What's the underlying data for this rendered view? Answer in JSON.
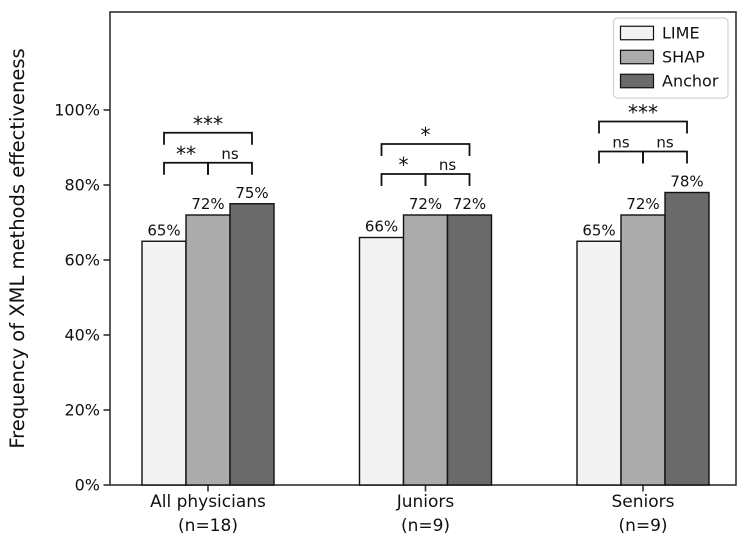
{
  "chart_data": {
    "type": "bar",
    "title": "",
    "xlabel": "",
    "ylabel": "Frequency of XML methods effectiveness",
    "ylim": [
      0,
      127
    ],
    "grid": false,
    "yticks": [
      {
        "value": 0,
        "label": "0%"
      },
      {
        "value": 20,
        "label": "20%"
      },
      {
        "value": 40,
        "label": "40%"
      },
      {
        "value": 60,
        "label": "60%"
      },
      {
        "value": 80,
        "label": "80%"
      },
      {
        "value": 100,
        "label": "100%"
      }
    ],
    "categories": [
      {
        "line1": "All physicians",
        "line2": "(n=18)"
      },
      {
        "line1": "Juniors",
        "line2": "(n=9)"
      },
      {
        "line1": "Seniors",
        "line2": "(n=9)"
      }
    ],
    "series": [
      {
        "name": "LIME",
        "color": "#f3f3f3",
        "values": [
          65,
          66,
          65
        ]
      },
      {
        "name": "SHAP",
        "color": "#ababab",
        "values": [
          72,
          72,
          72
        ]
      },
      {
        "name": "Anchor",
        "color": "#6a6a6a",
        "values": [
          75,
          72,
          78
        ]
      }
    ],
    "value_labels": [
      [
        "65%",
        "72%",
        "75%"
      ],
      [
        "66%",
        "72%",
        "72%"
      ],
      [
        "65%",
        "72%",
        "78%"
      ]
    ],
    "annotations": [
      {
        "group": 0,
        "comparisons": [
          {
            "from": "LIME",
            "to": "SHAP",
            "label": "**"
          },
          {
            "from": "SHAP",
            "to": "Anchor",
            "label": "ns"
          }
        ],
        "overall": {
          "from": "LIME",
          "to": "Anchor",
          "label": "***"
        }
      },
      {
        "group": 1,
        "comparisons": [
          {
            "from": "LIME",
            "to": "SHAP",
            "label": "*"
          },
          {
            "from": "SHAP",
            "to": "Anchor",
            "label": "ns"
          }
        ],
        "overall": {
          "from": "LIME",
          "to": "Anchor",
          "label": "*"
        }
      },
      {
        "group": 2,
        "comparisons": [
          {
            "from": "LIME",
            "to": "SHAP",
            "label": "ns"
          },
          {
            "from": "SHAP",
            "to": "Anchor",
            "label": "ns"
          }
        ],
        "overall": {
          "from": "LIME",
          "to": "Anchor",
          "label": "***"
        }
      }
    ],
    "legend": {
      "position": "upper right",
      "entries": [
        "LIME",
        "SHAP",
        "Anchor"
      ]
    },
    "colors": {
      "spine": "#303030",
      "bar_edge": "#111111",
      "bracket": "#111111",
      "text": "#111111",
      "legend_border": "#d2d2d2",
      "legend_bg": "#ffffff",
      "plot_bg": "#ffffff"
    }
  }
}
